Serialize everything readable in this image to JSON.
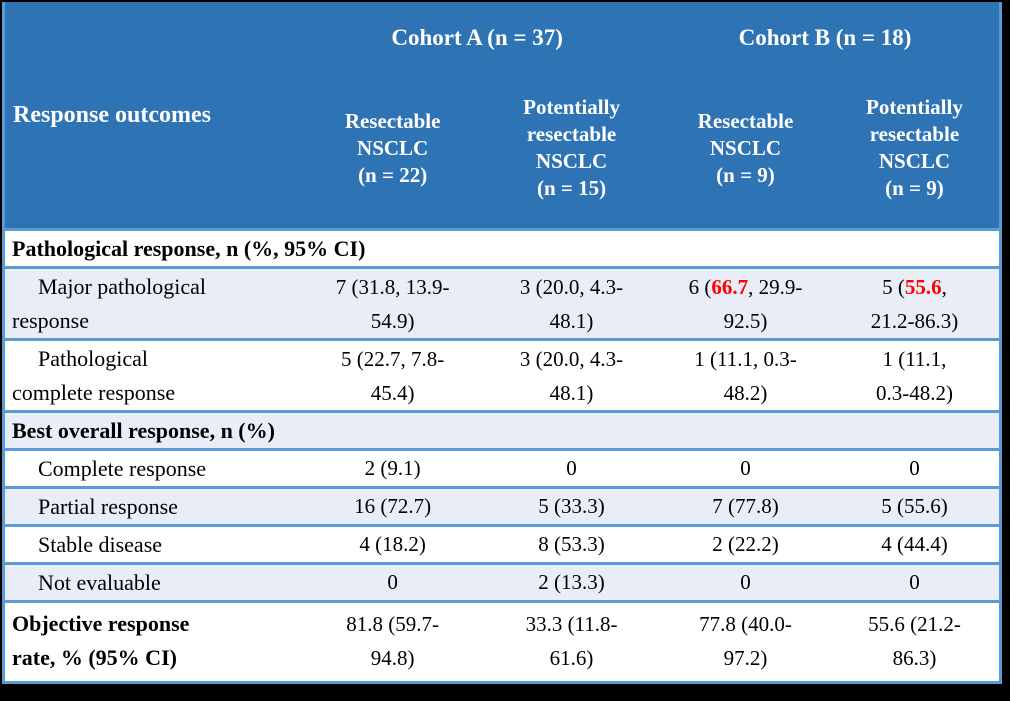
{
  "palette": {
    "header_blue": "#2E74B5",
    "row_alt_bg": "#E8EDF7",
    "row_white_bg": "#FFFFFF",
    "border_blue": "#5B9BD5",
    "accent_red": "#FF0000",
    "frame_black": "#000000",
    "header_text": "#FFFFFF",
    "body_text": "#000000"
  },
  "header": {
    "row_label": "Response outcomes",
    "cohort_a": "Cohort A (n = 37)",
    "cohort_b": "Cohort B (n = 18)",
    "columns": [
      {
        "label": "Resectable\nNSCLC\n(n = 22)"
      },
      {
        "label": "Potentially\nresectable\nNSCLC\n(n = 15)"
      },
      {
        "label": "Resectable\nNSCLC\n(n = 9)"
      },
      {
        "label": "Potentially\nresectable\nNSCLC\n(n = 9)"
      }
    ]
  },
  "table": {
    "rows": [
      {
        "type": "section",
        "bg": "white",
        "label": "Pathological response, n (%, 95% CI)"
      },
      {
        "type": "data",
        "bg": "alt",
        "lines": 2,
        "label": "Major pathological\nresponse",
        "cells": [
          [
            {
              "t": "7 (31.8, 13.9-\n54.9)"
            }
          ],
          [
            {
              "t": "3 (20.0, 4.3-\n48.1)"
            }
          ],
          [
            {
              "t": "6 ("
            },
            {
              "t": "66.7",
              "red": true
            },
            {
              "t": ", 29.9-\n92.5)"
            }
          ],
          [
            {
              "t": "5 ("
            },
            {
              "t": "55.6",
              "red": true
            },
            {
              "t": ",\n21.2-86.3)"
            }
          ]
        ]
      },
      {
        "type": "data",
        "bg": "white",
        "lines": 2,
        "label": "Pathological\ncomplete response",
        "cells": [
          [
            {
              "t": "5 (22.7, 7.8-\n45.4)"
            }
          ],
          [
            {
              "t": "3 (20.0, 4.3-\n48.1)"
            }
          ],
          [
            {
              "t": "1 (11.1, 0.3-\n48.2)"
            }
          ],
          [
            {
              "t": "1 (11.1,\n0.3-48.2)"
            }
          ]
        ]
      },
      {
        "type": "section",
        "bg": "alt",
        "label": "Best overall response, n (%)"
      },
      {
        "type": "data",
        "bg": "white",
        "lines": 1,
        "label": "Complete response",
        "cells": [
          [
            {
              "t": "2 (9.1)"
            }
          ],
          [
            {
              "t": "0"
            }
          ],
          [
            {
              "t": "0"
            }
          ],
          [
            {
              "t": "0"
            }
          ]
        ]
      },
      {
        "type": "data",
        "bg": "alt",
        "lines": 1,
        "label": "Partial response",
        "cells": [
          [
            {
              "t": "16 (72.7)"
            }
          ],
          [
            {
              "t": "5 (33.3)"
            }
          ],
          [
            {
              "t": "7 (77.8)"
            }
          ],
          [
            {
              "t": "5 (55.6)"
            }
          ]
        ]
      },
      {
        "type": "data",
        "bg": "white",
        "lines": 1,
        "label": "Stable disease",
        "cells": [
          [
            {
              "t": "4 (18.2)"
            }
          ],
          [
            {
              "t": "8 (53.3)"
            }
          ],
          [
            {
              "t": "2 (22.2)"
            }
          ],
          [
            {
              "t": "4 (44.4)"
            }
          ]
        ]
      },
      {
        "type": "data",
        "bg": "alt",
        "lines": 1,
        "label": "Not evaluable",
        "cells": [
          [
            {
              "t": "0"
            }
          ],
          [
            {
              "t": "2 (13.3)"
            }
          ],
          [
            {
              "t": "0"
            }
          ],
          [
            {
              "t": "0"
            }
          ]
        ]
      },
      {
        "type": "data",
        "bg": "white",
        "lines": 2,
        "bold_label": true,
        "no_indent": true,
        "label": "Objective response\nrate, % (95% CI)",
        "cells": [
          [
            {
              "t": "81.8 (59.7-\n94.8)"
            }
          ],
          [
            {
              "t": "33.3 (11.8-\n61.6)"
            }
          ],
          [
            {
              "t": "77.8 (40.0-\n97.2)"
            }
          ],
          [
            {
              "t": "55.6 (21.2-\n86.3)"
            }
          ]
        ]
      }
    ]
  }
}
